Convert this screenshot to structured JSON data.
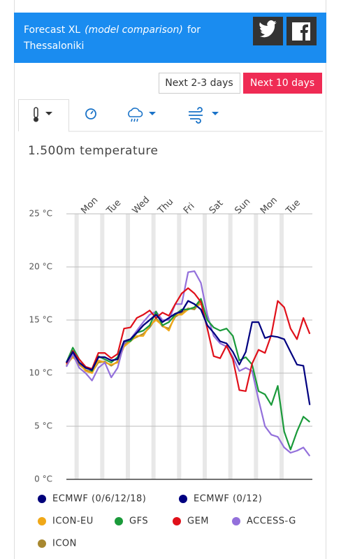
{
  "header": {
    "title": "Forecast XL",
    "subtitle": "(model comparison)",
    "connector": "for",
    "location": "Thessaloniki"
  },
  "buttons": [
    "Next 2-3 days",
    "Next 10 days"
  ],
  "chart_data": {
    "type": "line",
    "title": "1.500m temperature",
    "x": [
      -0.4,
      -0.15,
      0.1,
      0.35,
      0.6,
      0.85,
      1.1,
      1.35,
      1.6,
      1.85,
      2.1,
      2.35,
      2.6,
      2.85,
      3.1,
      3.35,
      3.6,
      3.85,
      4.1,
      4.35,
      4.6,
      4.85,
      5.1,
      5.35,
      5.6,
      5.85,
      6.1,
      6.35,
      6.6,
      6.85,
      7.1,
      7.35,
      7.6,
      7.85,
      8.1,
      8.35,
      8.6,
      8.85,
      9.1
    ],
    "xlim": [
      -0.4,
      9.2
    ],
    "xticks": [
      {
        "value": 0,
        "label": "Mon"
      },
      {
        "value": 1,
        "label": "Tue"
      },
      {
        "value": 2,
        "label": "Wed"
      },
      {
        "value": 3,
        "label": "Thu"
      },
      {
        "value": 4,
        "label": "Fri"
      },
      {
        "value": 5,
        "label": "Sat"
      },
      {
        "value": 6,
        "label": "Sun"
      },
      {
        "value": 7,
        "label": "Mon"
      },
      {
        "value": 8,
        "label": "Tue"
      }
    ],
    "ylim": [
      0,
      25
    ],
    "yticks": [
      {
        "value": 0,
        "label": "0 °C"
      },
      {
        "value": 5,
        "label": "5 °C"
      },
      {
        "value": 10,
        "label": "10 °C"
      },
      {
        "value": 15,
        "label": "15 °C"
      },
      {
        "value": 20,
        "label": "20 °C"
      },
      {
        "value": 25,
        "label": "25 °C"
      }
    ],
    "grid": true,
    "series": [
      {
        "name": "ECMWF (0/6/12/18)",
        "color": "#00007a",
        "values": [
          11.0,
          12.0,
          11.0,
          10.5,
          10.3,
          11.5,
          11.5,
          11.2,
          11.3,
          13.0,
          13.2,
          13.8,
          14.5,
          15.0,
          15.5,
          14.8,
          15.2,
          15.6,
          15.8,
          16.8,
          16.5,
          16.0,
          14.5,
          null,
          null,
          null,
          null,
          null,
          null,
          null,
          null,
          null,
          null,
          null,
          null,
          null,
          null,
          null,
          null
        ]
      },
      {
        "name": "ECMWF (0/12)",
        "color": "#000080",
        "values": [
          11.0,
          12.0,
          11.0,
          10.5,
          10.3,
          11.5,
          11.5,
          11.2,
          11.3,
          13.0,
          13.2,
          13.8,
          14.5,
          15.0,
          15.5,
          14.8,
          15.2,
          15.6,
          15.8,
          16.8,
          16.5,
          16.0,
          14.5,
          13.8,
          13.0,
          12.8,
          12.0,
          10.8,
          12.0,
          14.8,
          14.8,
          13.3,
          13.5,
          13.4,
          13.2,
          12.0,
          10.8,
          10.7,
          7.0
        ]
      },
      {
        "name": "ICON-EU",
        "color": "#f0a818",
        "values": [
          10.8,
          11.5,
          11.0,
          10.2,
          10.0,
          11.2,
          11.0,
          10.8,
          11.0,
          12.5,
          13.0,
          13.5,
          13.5,
          14.5,
          15.0,
          14.5,
          14.0,
          15.5,
          15.5,
          16.0,
          16.2,
          16.5,
          null,
          null,
          null,
          null,
          null,
          null,
          null,
          null,
          null,
          null,
          null,
          null,
          null,
          null,
          null,
          null,
          null
        ]
      },
      {
        "name": "GFS",
        "color": "#1a9a3a",
        "values": [
          11.0,
          12.4,
          11.3,
          10.6,
          10.2,
          11.6,
          11.3,
          11.0,
          11.5,
          13.0,
          13.0,
          13.8,
          14.0,
          14.5,
          15.8,
          14.5,
          14.8,
          15.5,
          16.0,
          16.0,
          16.2,
          17.0,
          15.0,
          14.3,
          14.0,
          14.2,
          13.5,
          11.2,
          11.5,
          10.8,
          8.3,
          8.0,
          7.0,
          8.8,
          4.5,
          2.8,
          4.5,
          5.9,
          5.4
        ]
      },
      {
        "name": "GEM",
        "color": "#e0101a",
        "values": [
          10.9,
          12.1,
          11.3,
          10.6,
          10.4,
          11.9,
          11.9,
          11.4,
          11.8,
          14.2,
          14.3,
          15.2,
          15.5,
          15.9,
          15.2,
          15.7,
          15.4,
          16.5,
          17.5,
          18.0,
          17.5,
          16.7,
          14.2,
          11.6,
          11.4,
          12.6,
          11.3,
          8.4,
          8.3,
          10.9,
          12.2,
          11.9,
          13.6,
          16.8,
          16.2,
          14.2,
          13.2,
          15.2,
          13.7
        ]
      },
      {
        "name": "ACCESS-G",
        "color": "#9370db",
        "values": [
          10.6,
          11.8,
          10.5,
          10.0,
          9.3,
          10.5,
          11.0,
          9.6,
          10.5,
          12.8,
          13.2,
          14.0,
          14.8,
          15.5,
          15.8,
          15.0,
          15.0,
          16.5,
          16.5,
          19.5,
          19.6,
          18.5,
          15.5,
          13.5,
          12.8,
          12.5,
          11.5,
          10.2,
          10.5,
          10.2,
          7.5,
          5.0,
          4.2,
          4.0,
          3.0,
          2.5,
          2.7,
          3.0,
          2.2
        ]
      },
      {
        "name": "ICON",
        "color": "#a88830",
        "values": [
          10.7,
          11.6,
          10.8,
          10.3,
          10.1,
          11.0,
          11.1,
          10.7,
          11.1,
          12.7,
          13.1,
          13.4,
          13.7,
          14.3,
          15.2,
          14.4,
          14.2,
          15.3,
          15.7,
          16.1,
          16.0,
          16.8,
          null,
          null,
          null,
          null,
          null,
          null,
          null,
          null,
          null,
          null,
          null,
          null,
          null,
          null,
          null,
          null,
          null
        ]
      }
    ]
  }
}
